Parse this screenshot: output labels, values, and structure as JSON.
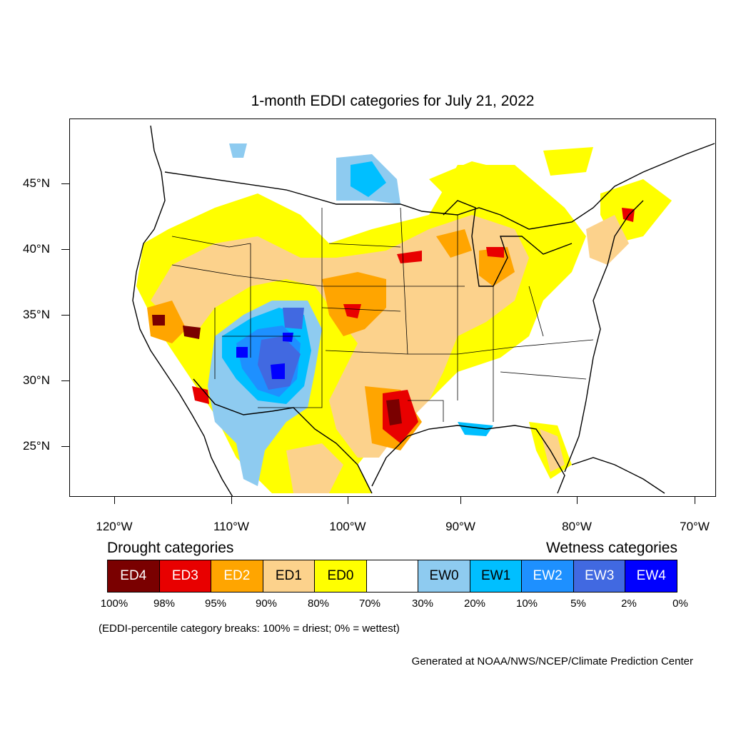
{
  "title": "1-month EDDI categories for July 21, 2022",
  "lat_labels": [
    "45°N",
    "40°N",
    "35°N",
    "30°N",
    "25°N"
  ],
  "lon_labels": [
    "120°W",
    "110°W",
    "100°W",
    "90°W",
    "80°W",
    "70°W"
  ],
  "legend": {
    "drought_title": "Drought categories",
    "wetness_title": "Wetness categories",
    "categories": [
      {
        "label": "ED4",
        "color": "#7a0000",
        "text_color": "#ffffff"
      },
      {
        "label": "ED3",
        "color": "#e80000",
        "text_color": "#ffffff"
      },
      {
        "label": "ED2",
        "color": "#ffa500",
        "text_color": "#ffffff"
      },
      {
        "label": "ED1",
        "color": "#fcd28c",
        "text_color": "#000000"
      },
      {
        "label": "ED0",
        "color": "#ffff00",
        "text_color": "#000000"
      },
      {
        "label": "",
        "color": "#ffffff",
        "text_color": "#000000"
      },
      {
        "label": "EW0",
        "color": "#8ecbf0",
        "text_color": "#000000"
      },
      {
        "label": "EW1",
        "color": "#00bfff",
        "text_color": "#000000"
      },
      {
        "label": "EW2",
        "color": "#1e90ff",
        "text_color": "#ffffff"
      },
      {
        "label": "EW3",
        "color": "#4169e1",
        "text_color": "#ffffff"
      },
      {
        "label": "EW4",
        "color": "#0000ff",
        "text_color": "#ffffff"
      }
    ],
    "percent_breaks": [
      "100%",
      "98%",
      "95%",
      "90%",
      "80%",
      "70%",
      "30%",
      "20%",
      "10%",
      "5%",
      "2%",
      "0%"
    ]
  },
  "footnote": "(EDDI-percentile category breaks: 100% = driest; 0% = wettest)",
  "credit": "Generated at NOAA/NWS/NCEP/Climate Prediction Center"
}
